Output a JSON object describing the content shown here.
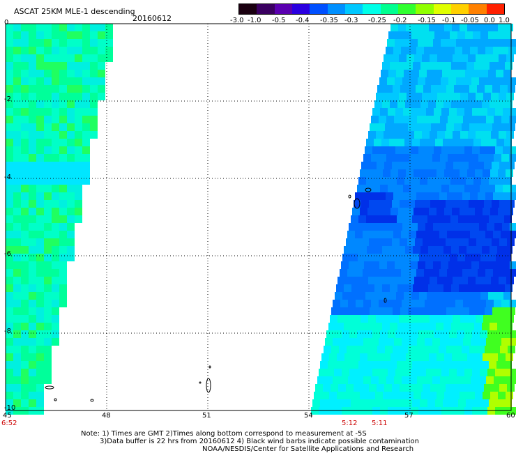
{
  "header": {
    "title": "ASCAT 25KM MLE-1 descending",
    "date": "20160612"
  },
  "colorbar": {
    "tick_labels": [
      "-3.0",
      "-1.0",
      "-0.5",
      "-0.4",
      "-0.35",
      "-0.3",
      "-0.25",
      "-0.2",
      "-0.15",
      "-0.1",
      "-0.05",
      "0.0",
      "1.0"
    ],
    "colors": [
      "#1a0010",
      "#3a0060",
      "#5a00b0",
      "#2a00e0",
      "#0050ff",
      "#0090ff",
      "#00c8ff",
      "#00ffe8",
      "#00ff90",
      "#30ff30",
      "#90ff00",
      "#e0ff00",
      "#ffd000",
      "#ff8000",
      "#ff2000"
    ]
  },
  "axes": {
    "lon_labels": [
      "45",
      "48",
      "51",
      "54",
      "57",
      "60"
    ],
    "lat_labels": [
      "0",
      "-2",
      "-4",
      "-6",
      "-8",
      "-10"
    ]
  },
  "pass_times": {
    "left": "6:52",
    "right_a": "5:12",
    "right_b": "5:11"
  },
  "notes": {
    "line1": "Note: 1) Times are GMT 2)Times along bottom correspond to measurement at -5S",
    "line2": "3)Data buffer is 22 hrs from 20160612 4) Black wind barbs indicate possible contamination",
    "line3": "NOAA/NESDIS/Center for Satellite Applications and Research"
  },
  "map_data": {
    "lon_range": [
      45,
      60
    ],
    "lat_range": [
      -10,
      0
    ],
    "west_swath_color": "#00ff9a",
    "east_swath_color": "#0078ff",
    "contamination_color": "#000000"
  }
}
